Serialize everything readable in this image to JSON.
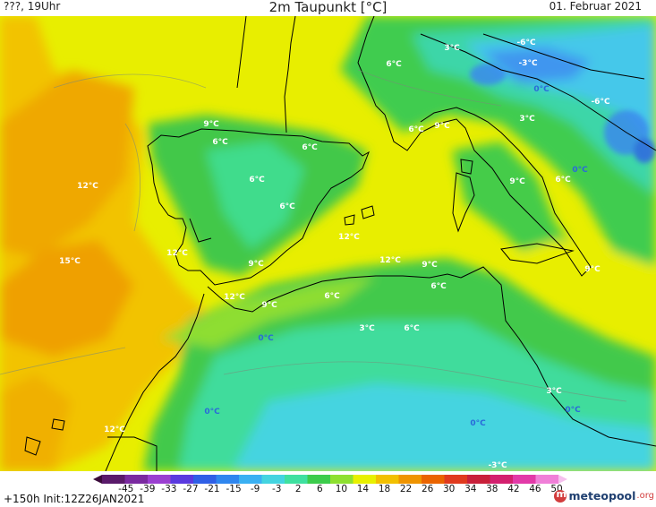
{
  "header": {
    "left": "???, 19Uhr",
    "title": "2m Taupunkt [°C]",
    "right": "01. Februar 2021"
  },
  "colorbar": {
    "labels": [
      "-45",
      "-39",
      "-33",
      "-27",
      "-21",
      "-15",
      "-9",
      "-3",
      "2",
      "6",
      "10",
      "14",
      "18",
      "22",
      "26",
      "30",
      "34",
      "38",
      "42",
      "46",
      "50"
    ],
    "colors": [
      "#3a0a3a",
      "#5a1a6a",
      "#7a2aa0",
      "#9a3fd0",
      "#5a3adf",
      "#2f5fe6",
      "#2f86ef",
      "#3ab0f2",
      "#44d4e0",
      "#3fe0a0",
      "#3ccc4c",
      "#8ee030",
      "#e8f000",
      "#f2c000",
      "#ef9400",
      "#ea6400",
      "#e03a1e",
      "#c8203a",
      "#d3206e",
      "#e23aa8",
      "#f07fd8",
      "#f6c0ee"
    ]
  },
  "footer": {
    "init": "+150h Init:12Z26JAN2021",
    "logo": "meteopool",
    "logo_suffix": ".org"
  },
  "map_labels": [
    {
      "text": "3°C",
      "style": "w"
    },
    {
      "text": "-6°C",
      "style": "w"
    },
    {
      "text": "-3°C",
      "style": "w"
    },
    {
      "text": "6°C",
      "style": "w"
    },
    {
      "text": "0°C",
      "style": "b"
    },
    {
      "text": "-6°C",
      "style": "w"
    },
    {
      "text": "9°C",
      "style": "w"
    },
    {
      "text": "6°C",
      "style": "w"
    },
    {
      "text": "6°C",
      "style": "w"
    },
    {
      "text": "3°C",
      "style": "w"
    },
    {
      "text": "6°C",
      "style": "w"
    },
    {
      "text": "9°C",
      "style": "w"
    },
    {
      "text": "0°C",
      "style": "b"
    },
    {
      "text": "12°C",
      "style": "w"
    },
    {
      "text": "6°C",
      "style": "w"
    },
    {
      "text": "6°C",
      "style": "w"
    },
    {
      "text": "9°C",
      "style": "w"
    },
    {
      "text": "6°C",
      "style": "w"
    },
    {
      "text": "12°C",
      "style": "w"
    },
    {
      "text": "15°C",
      "style": "w"
    },
    {
      "text": "12°C",
      "style": "w"
    },
    {
      "text": "9°C",
      "style": "w"
    },
    {
      "text": "12°C",
      "style": "w"
    },
    {
      "text": "9°C",
      "style": "w"
    },
    {
      "text": "6°C",
      "style": "w"
    },
    {
      "text": "9°C",
      "style": "w"
    },
    {
      "text": "12°C",
      "style": "w"
    },
    {
      "text": "9°C",
      "style": "w"
    },
    {
      "text": "6°C",
      "style": "w"
    },
    {
      "text": "0°C",
      "style": "b"
    },
    {
      "text": "3°C",
      "style": "w"
    },
    {
      "text": "6°C",
      "style": "w"
    },
    {
      "text": "3°C",
      "style": "w"
    },
    {
      "text": "0°C",
      "style": "b"
    },
    {
      "text": "0°C",
      "style": "b"
    },
    {
      "text": "12°C",
      "style": "w"
    },
    {
      "text": "0°C",
      "style": "b"
    },
    {
      "text": "-3°C",
      "style": "w"
    }
  ]
}
